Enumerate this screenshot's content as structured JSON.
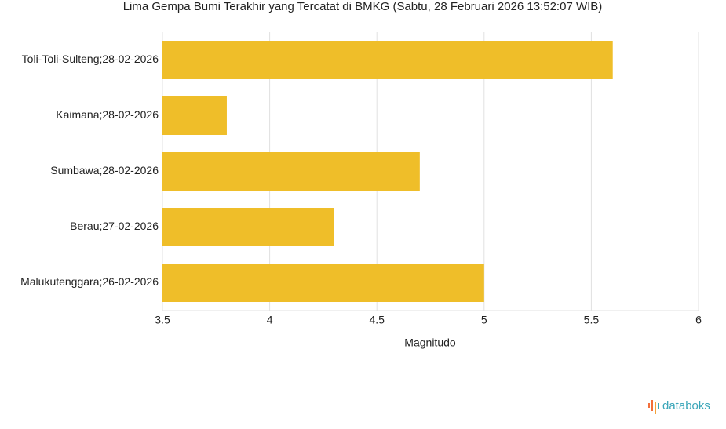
{
  "chart_data": {
    "type": "bar",
    "orientation": "horizontal",
    "title": "Lima Gempa Bumi Terakhir yang Tercatat di BMKG (Sabtu, 28 Februari 2026 13:52:07 WIB)",
    "categories": [
      "Toli-Toli-Sulteng;28-02-2026",
      "Kaimana;28-02-2026",
      "Sumbawa;28-02-2026",
      "Berau;27-02-2026",
      "Malukutenggara;26-02-2026"
    ],
    "values": [
      5.6,
      3.8,
      4.7,
      4.3,
      5.0
    ],
    "color": "#efbe29",
    "xlabel": "Magnitudo",
    "xlim": [
      3.5,
      6
    ],
    "xticks": [
      3.5,
      4,
      4.5,
      5,
      5.5,
      6
    ],
    "grid": true,
    "brand": "databoks"
  }
}
